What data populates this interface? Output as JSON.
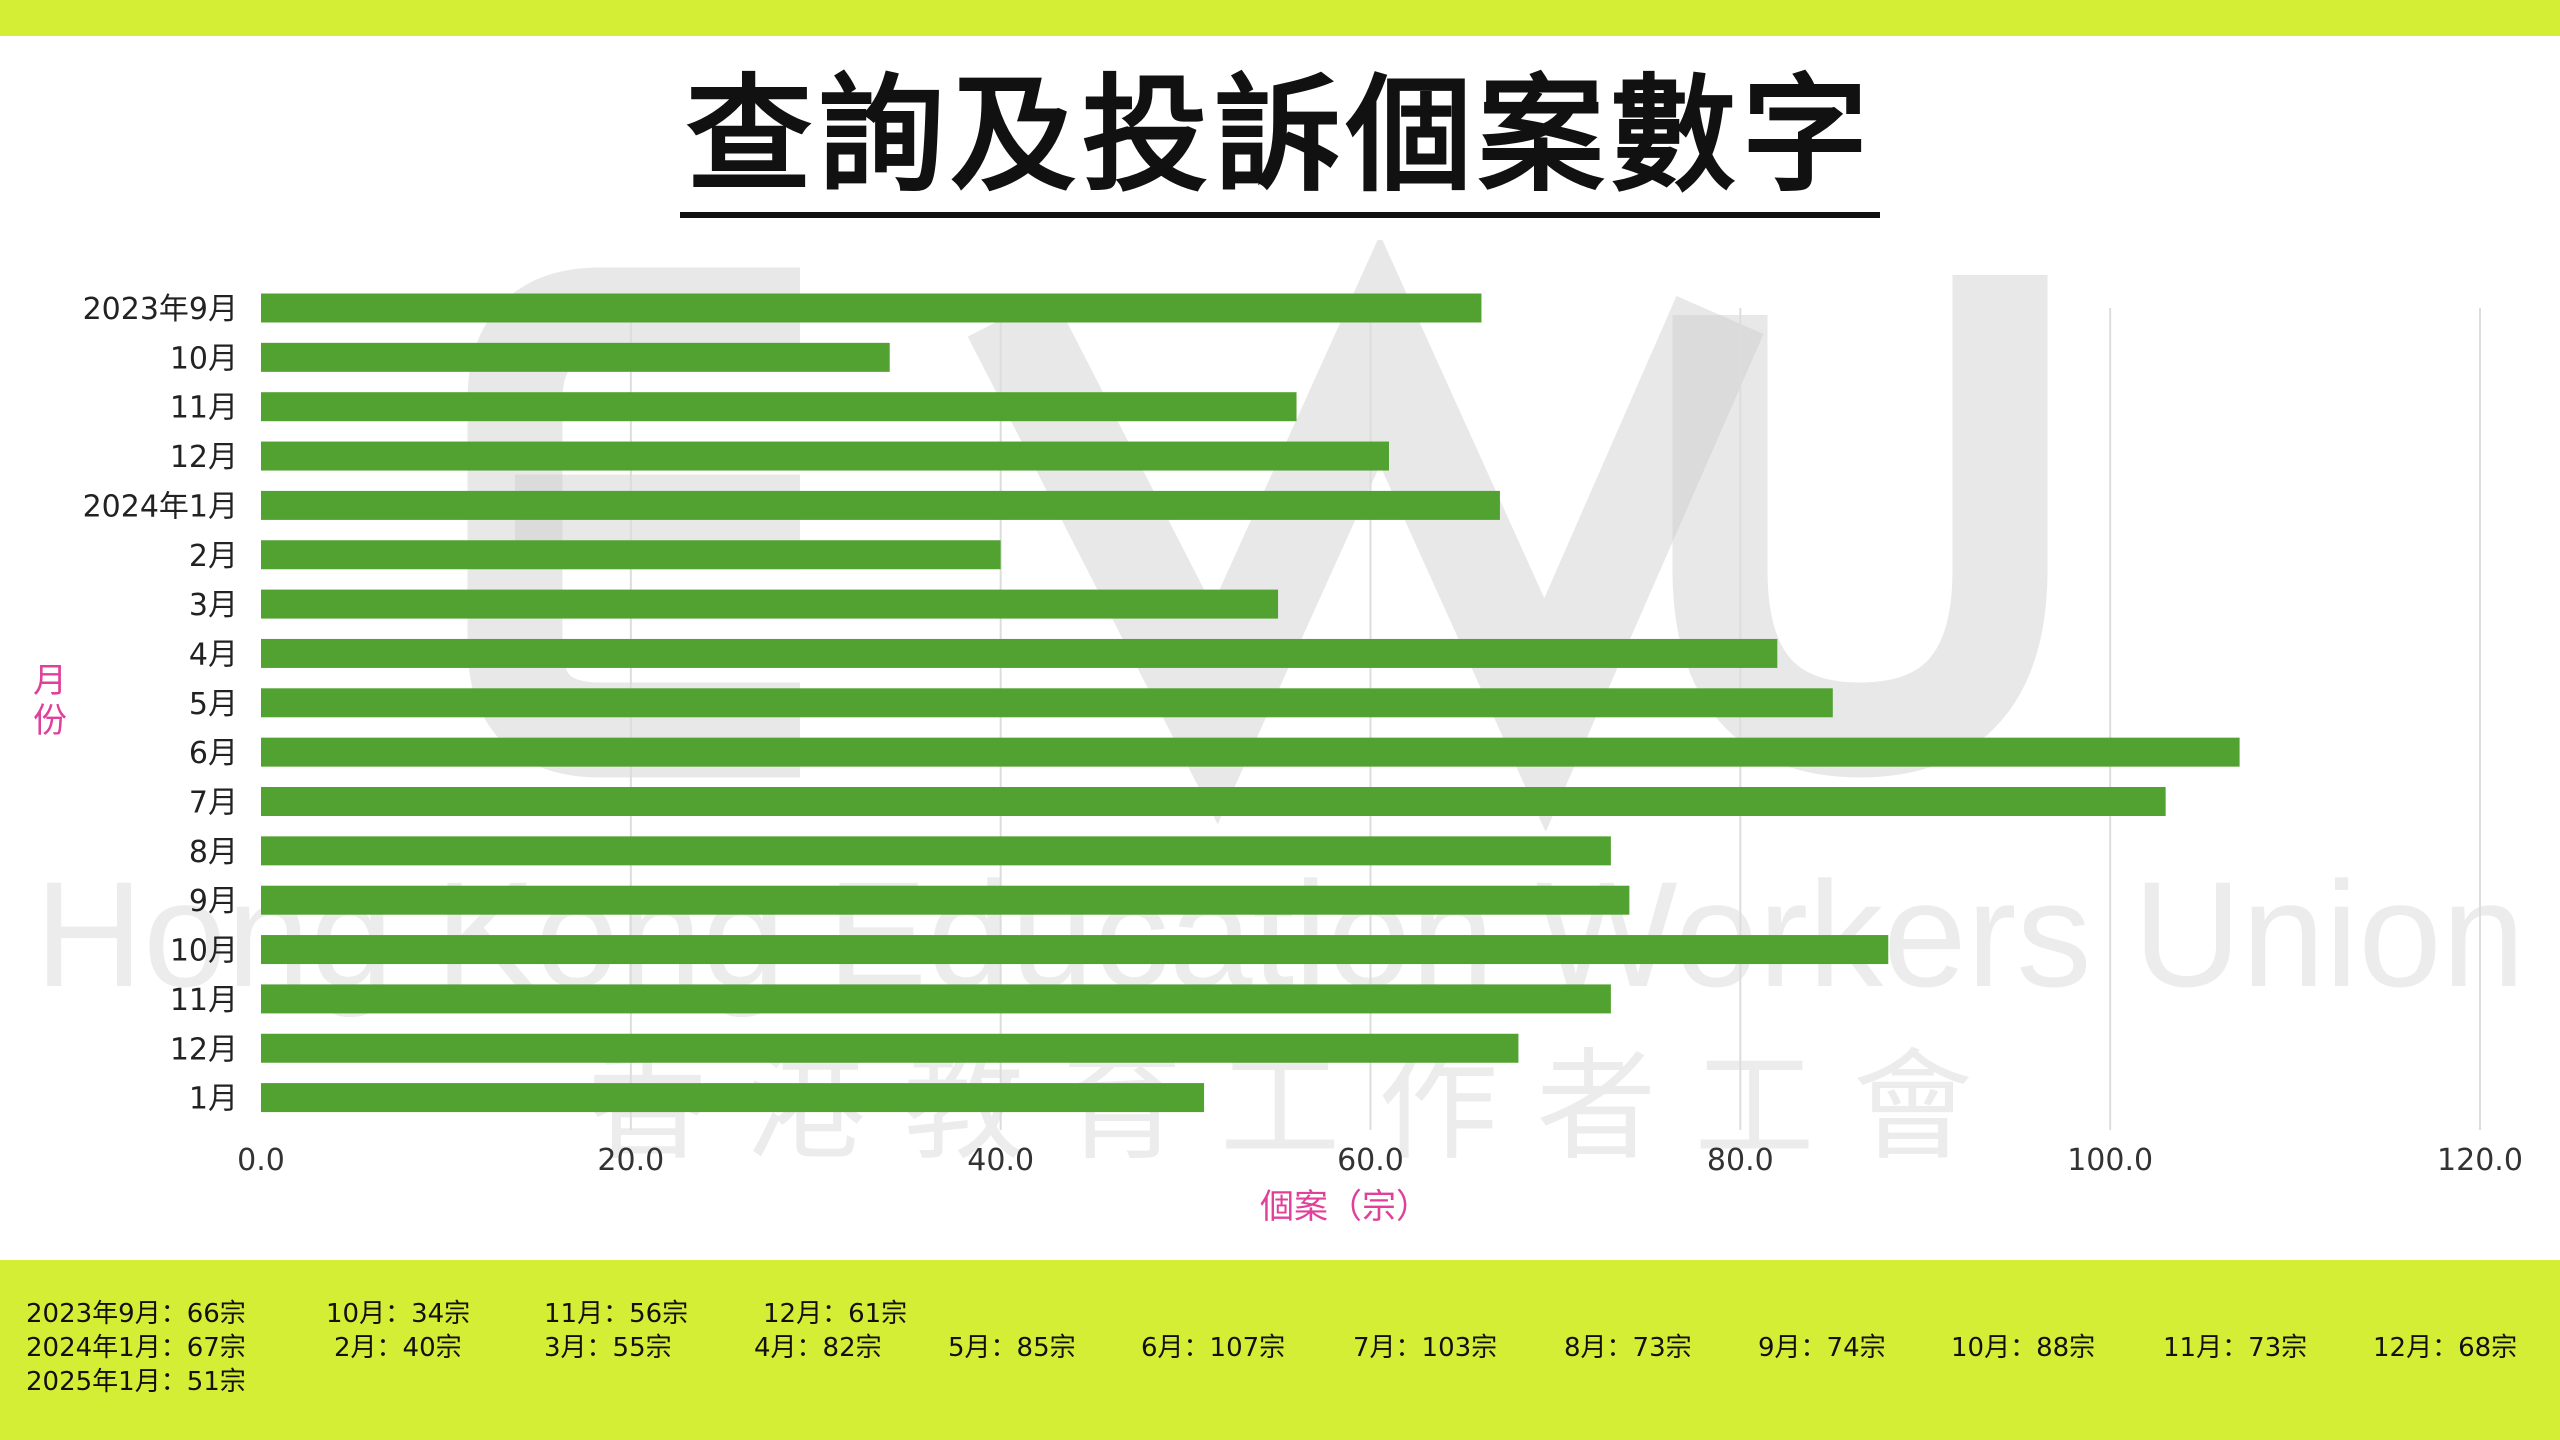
{
  "title": "查詢及投訴個案數字",
  "colors": {
    "band": "#d4ee35",
    "bar": "#52a232",
    "axis_title": "#e0409a",
    "watermark": "#cccccc"
  },
  "watermark": {
    "logo": "EWU",
    "english": "Hong Kong Education Workers Union",
    "chinese": "香 港 教 育 工 作 者 工 會"
  },
  "chart_data": {
    "type": "bar",
    "orientation": "horizontal",
    "categories": [
      "2023年9月",
      "10月",
      "11月",
      "12月",
      "2024年1月",
      "2月",
      "3月",
      "4月",
      "5月",
      "6月",
      "7月",
      "8月",
      "9月",
      "10月",
      "11月",
      "12月",
      "1月"
    ],
    "values": [
      66,
      34,
      56,
      61,
      67,
      40,
      55,
      82,
      85,
      107,
      103,
      73,
      74,
      88,
      73,
      68,
      51
    ],
    "xlabel": "個案（宗）",
    "ylabel": "月份",
    "xlim": [
      0,
      120
    ],
    "xticks": [
      "0.0",
      "20.0",
      "40.0",
      "60.0",
      "80.0",
      "100.0",
      "120.0"
    ],
    "grid": "vertical"
  },
  "summary": {
    "lines": [
      [
        "2023年9月：66宗",
        "10月：34宗",
        "11月：56宗",
        "12月：61宗"
      ],
      [
        "2024年1月：67宗",
        "2月：40宗",
        "3月：55宗",
        "4月：82宗",
        "5月：85宗",
        "6月：107宗",
        "7月：103宗",
        "8月：73宗",
        "9月：74宗",
        "10月：88宗",
        "11月：73宗",
        "12月：68宗"
      ],
      [
        "2025年1月：51宗"
      ]
    ]
  }
}
